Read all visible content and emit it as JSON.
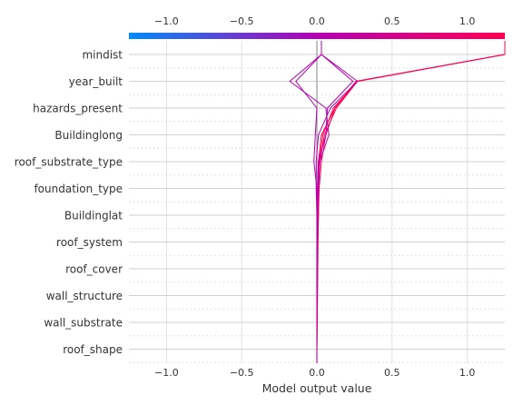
{
  "chart_data": {
    "type": "decision_plot",
    "title": "",
    "xlabel": "Model output value",
    "ylabel": "",
    "xlim": [
      -1.25,
      1.25
    ],
    "x_ticks": [
      -1.0,
      -0.5,
      0.0,
      0.5,
      1.0
    ],
    "x_tick_labels": [
      "−1.0",
      "−0.5",
      "0.0",
      "0.5",
      "1.0"
    ],
    "base_value": 0.0,
    "features": [
      "mindist",
      "year_built",
      "hazards_present",
      "Buildinglong",
      "roof_substrate_type",
      "foundation_type",
      "Buildinglat",
      "roof_system",
      "roof_cover",
      "wall_structure",
      "wall_substrate",
      "roof_shape"
    ],
    "colormap": {
      "low": "#008bfb",
      "high": "#ff0052"
    },
    "grid": true,
    "series": [
      {
        "values": [
          1.25,
          0.27,
          0.13,
          0.05,
          0.02,
          0.01,
          0.01,
          0.005,
          0.005,
          0.003,
          0.002,
          0.0
        ]
      },
      {
        "values": [
          1.25,
          0.27,
          0.11,
          0.04,
          0.015,
          0.01,
          0.008,
          0.006,
          0.004,
          0.002,
          0.001,
          0.0
        ]
      },
      {
        "values": [
          1.25,
          0.26,
          0.12,
          0.03,
          0.01,
          0.008,
          0.006,
          0.004,
          0.003,
          0.002,
          0.001,
          0.0
        ]
      },
      {
        "values": [
          1.25,
          0.27,
          0.12,
          0.06,
          0.03,
          0.015,
          0.01,
          0.008,
          0.006,
          0.004,
          0.002,
          0.0
        ]
      },
      {
        "values": [
          0.03,
          0.27,
          0.09,
          0.01,
          -0.005,
          -0.005,
          0.0,
          0.0,
          0.0,
          0.0,
          0.0,
          0.0
        ]
      },
      {
        "values": [
          0.03,
          -0.18,
          0.06,
          0.08,
          0.02,
          0.01,
          0.005,
          0.003,
          0.002,
          0.001,
          0.0,
          0.0
        ]
      },
      {
        "values": [
          0.03,
          -0.14,
          0.0,
          -0.01,
          -0.02,
          0.0,
          0.0,
          0.0,
          0.0,
          0.0,
          0.0,
          0.0
        ]
      },
      {
        "values": [
          0.03,
          0.24,
          0.07,
          0.06,
          0.01,
          0.005,
          0.0,
          0.0,
          0.0,
          0.0,
          0.0,
          0.0
        ]
      }
    ]
  }
}
